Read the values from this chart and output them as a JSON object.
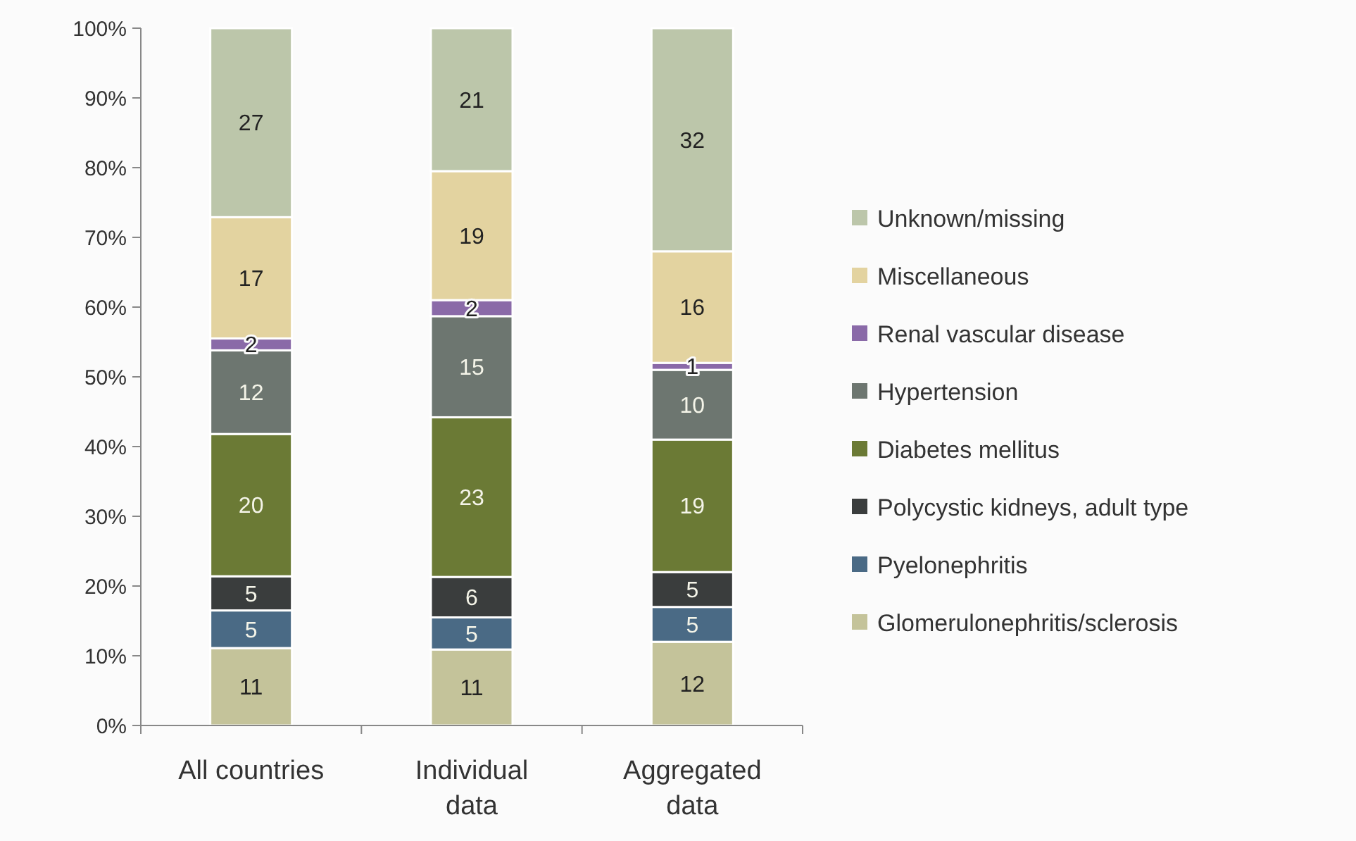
{
  "chart_data": {
    "type": "bar",
    "stacked": true,
    "categories": [
      "All countries",
      "Individual data",
      "Aggregated data"
    ],
    "ylim": [
      0,
      100
    ],
    "yticks": [
      {
        "value": 0,
        "label": "0%"
      },
      {
        "value": 10,
        "label": "10%"
      },
      {
        "value": 20,
        "label": "20%"
      },
      {
        "value": 30,
        "label": "30%"
      },
      {
        "value": 40,
        "label": "40%"
      },
      {
        "value": 50,
        "label": "50%"
      },
      {
        "value": 60,
        "label": "60%"
      },
      {
        "value": 70,
        "label": "70%"
      },
      {
        "value": 80,
        "label": "80%"
      },
      {
        "value": 90,
        "label": "90%"
      },
      {
        "value": 100,
        "label": "100%"
      }
    ],
    "grid": false,
    "legend": "right",
    "series": [
      {
        "name": "Glomerulonephritis/sclerosis",
        "color": "#c4c39a",
        "values": [
          11.1,
          10.9,
          12
        ],
        "value_labels": [
          "11",
          "11",
          "12"
        ]
      },
      {
        "name": "Pyelonephritis",
        "color": "#4a6a85",
        "values": [
          5.4,
          4.6,
          5
        ],
        "value_labels": [
          "5",
          "5",
          "5"
        ]
      },
      {
        "name": "Polycystic kidneys, adult type",
        "color": "#3a3d3d",
        "values": [
          4.9,
          5.8,
          5
        ],
        "value_labels": [
          "5",
          "6",
          "5"
        ]
      },
      {
        "name": "Diabetes mellitus",
        "color": "#6b7a35",
        "values": [
          20.4,
          22.9,
          19
        ],
        "value_labels": [
          "20",
          "23",
          "19"
        ]
      },
      {
        "name": "Hypertension",
        "color": "#6d7670",
        "values": [
          12,
          14.5,
          10
        ],
        "value_labels": [
          "12",
          "15",
          "10"
        ]
      },
      {
        "name": "Renal vascular disease",
        "color": "#8a6aa8",
        "values": [
          1.7,
          2.3,
          1
        ],
        "value_labels": [
          "2",
          "2",
          "1"
        ]
      },
      {
        "name": "Miscellaneous",
        "color": "#e3d3a0",
        "values": [
          17.4,
          18.5,
          16
        ],
        "value_labels": [
          "17",
          "19",
          "16"
        ]
      },
      {
        "name": "Unknown/missing",
        "color": "#bcc6aa",
        "values": [
          27.1,
          20.5,
          32
        ],
        "value_labels": [
          "27",
          "21",
          "32"
        ]
      }
    ]
  }
}
